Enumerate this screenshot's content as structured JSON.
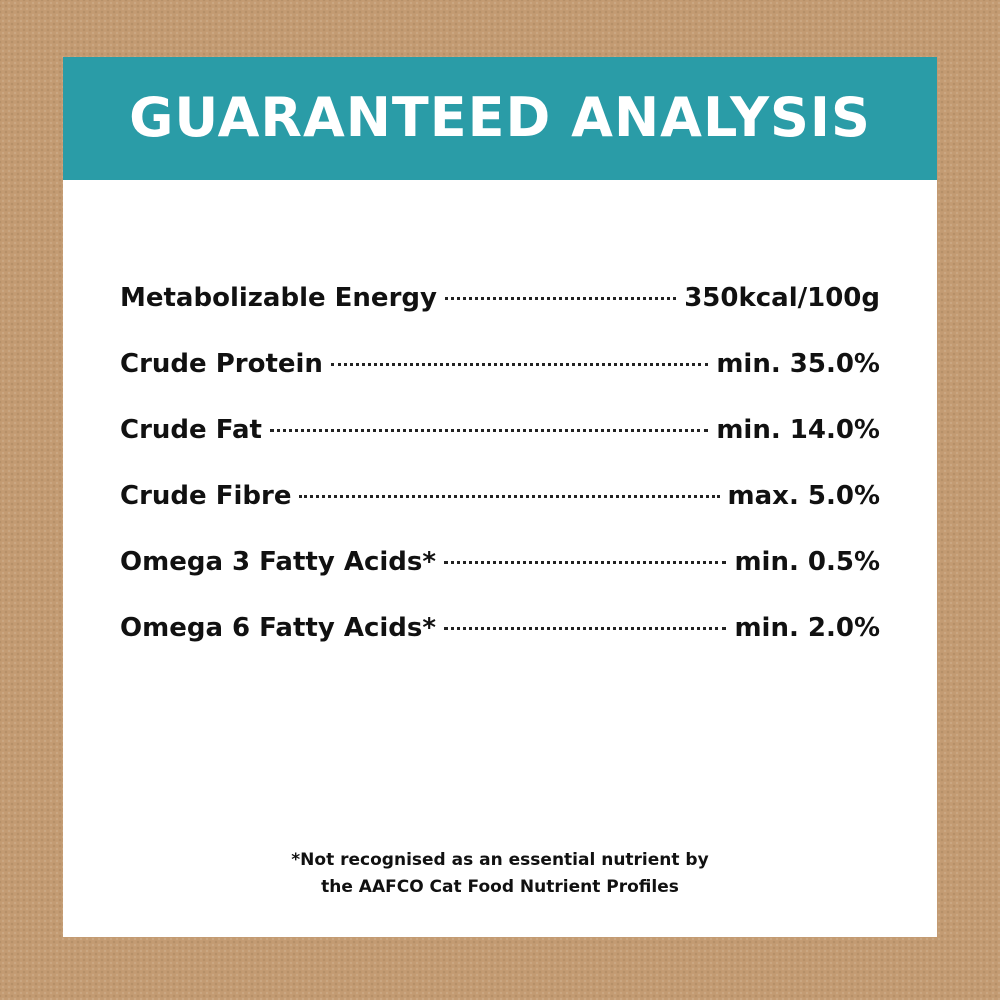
{
  "header": {
    "title": "GUARANTEED ANALYSIS"
  },
  "table": {
    "rows": [
      [
        "Metabolizable Energy",
        "350kcal/100g"
      ],
      [
        "Crude Protein",
        "min. 35.0%"
      ],
      [
        "Crude Fat",
        "min. 14.0%"
      ],
      [
        "Crude Fibre",
        "max. 5.0%"
      ],
      [
        "Omega 3 Fatty Acids*",
        "min. 0.5%"
      ],
      [
        "Omega 6 Fatty Acids*",
        "min. 2.0%"
      ]
    ]
  },
  "footnote": {
    "lines": [
      "*Not recognised as an essential nutrient by",
      "the AAFCO Cat Food Nutrient Profiles"
    ]
  }
}
